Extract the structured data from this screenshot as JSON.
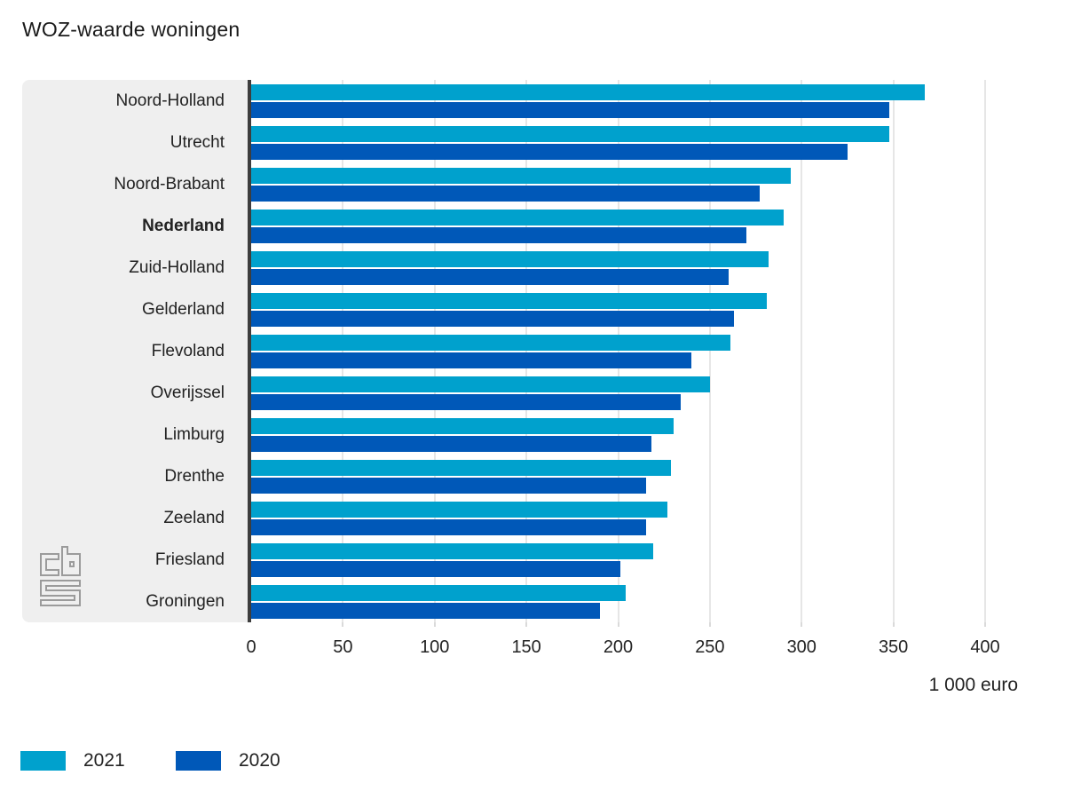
{
  "title": "WOZ-waarde woningen",
  "colors": {
    "series_2021": "#00a1cd",
    "series_2020": "#0058b8",
    "panel_bg": "#efefef",
    "axis_line": "#3d3d3d",
    "gridline": "#cccccc",
    "text": "#222222",
    "logo_grey": "#9b9b9b"
  },
  "legend": [
    {
      "label": "2021",
      "color": "#00a1cd"
    },
    {
      "label": "2020",
      "color": "#0058b8"
    }
  ],
  "logo_name": "cbs-logo",
  "chart_data": {
    "type": "bar",
    "orientation": "horizontal",
    "title": "WOZ-waarde woningen",
    "xlabel": "1 000 euro",
    "xlim": [
      0,
      400
    ],
    "xticks": [
      0,
      50,
      100,
      150,
      200,
      250,
      300,
      350,
      400
    ],
    "grid": "vertical",
    "legend_position": "bottom-left",
    "categories": [
      "Noord-Holland",
      "Utrecht",
      "Noord-Brabant",
      "Nederland",
      "Zuid-Holland",
      "Gelderland",
      "Flevoland",
      "Overijssel",
      "Limburg",
      "Drenthe",
      "Zeeland",
      "Friesland",
      "Groningen"
    ],
    "emphasized_category": "Nederland",
    "series": [
      {
        "name": "2021",
        "color": "#00a1cd",
        "values": [
          367,
          348,
          294,
          290,
          282,
          281,
          261,
          250,
          230,
          229,
          227,
          219,
          204
        ]
      },
      {
        "name": "2020",
        "color": "#0058b8",
        "values": [
          348,
          325,
          277,
          270,
          260,
          263,
          240,
          234,
          218,
          215,
          215,
          201,
          190
        ]
      }
    ]
  }
}
